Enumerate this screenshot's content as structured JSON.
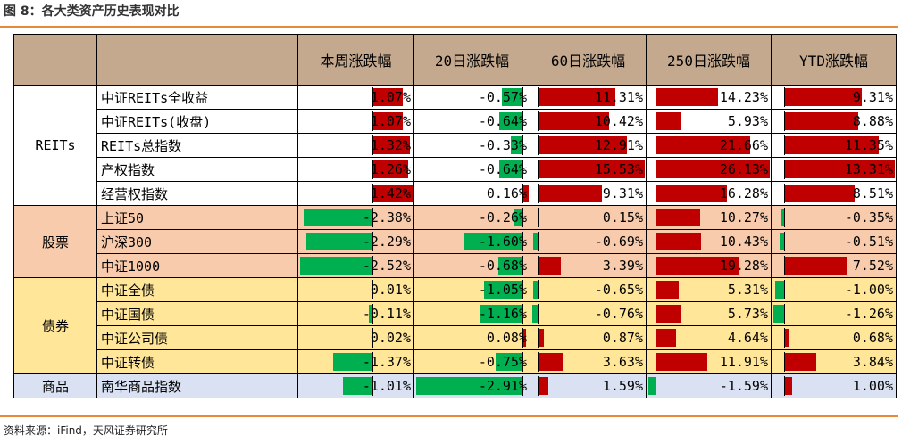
{
  "title": "图 8：各大类资产历史表现对比",
  "source": "资料来源：iFind，天风证券研究所",
  "colors": {
    "positive": "#c00000",
    "negative": "#00b050",
    "header": "#c5a98e"
  },
  "chart_data": {
    "type": "table",
    "columns": [
      "本周涨跌幅",
      "20日涨跌幅",
      "60日涨跌幅",
      "250日涨跌幅",
      "YTD涨跌幅"
    ],
    "groups": [
      {
        "category": "REITs",
        "bg": "#ffffff",
        "rows": [
          {
            "name": "中证REITs全收益",
            "values": [
              1.07,
              -0.57,
              11.31,
              14.23,
              9.31
            ],
            "labels": [
              "1.07%",
              "-0.57%",
              "11.31%",
              "14.23%",
              "9.31%"
            ]
          },
          {
            "name": "中证REITs(收盘)",
            "values": [
              1.07,
              -0.64,
              10.42,
              5.93,
              8.88
            ],
            "labels": [
              "1.07%",
              "-0.64%",
              "10.42%",
              "5.93%",
              "8.88%"
            ]
          },
          {
            "name": "REITs总指数",
            "values": [
              1.32,
              -0.33,
              12.91,
              21.66,
              11.35
            ],
            "labels": [
              "1.32%",
              "-0.33%",
              "12.91%",
              "21.66%",
              "11.35%"
            ]
          },
          {
            "name": "产权指数",
            "values": [
              1.26,
              -0.64,
              15.53,
              26.13,
              13.31
            ],
            "labels": [
              "1.26%",
              "-0.64%",
              "15.53%",
              "26.13%",
              "13.31%"
            ]
          },
          {
            "name": "经营权指数",
            "values": [
              1.42,
              0.16,
              9.31,
              16.28,
              8.51
            ],
            "labels": [
              "1.42%",
              "0.16%",
              "9.31%",
              "16.28%",
              "8.51%"
            ]
          }
        ]
      },
      {
        "category": "股票",
        "bg": "#f8cbad",
        "rows": [
          {
            "name": "上证50",
            "values": [
              -2.38,
              -0.26,
              0.15,
              10.27,
              -0.35
            ],
            "labels": [
              "-2.38%",
              "-0.26%",
              "0.15%",
              "10.27%",
              "-0.35%"
            ]
          },
          {
            "name": "沪深300",
            "values": [
              -2.29,
              -1.6,
              -0.69,
              10.43,
              -0.51
            ],
            "labels": [
              "-2.29%",
              "-1.60%",
              "-0.69%",
              "10.43%",
              "-0.51%"
            ]
          },
          {
            "name": "中证1000",
            "values": [
              -2.52,
              -0.68,
              3.39,
              19.28,
              7.52
            ],
            "labels": [
              "-2.52%",
              "-0.68%",
              "3.39%",
              "19.28%",
              "7.52%"
            ]
          }
        ]
      },
      {
        "category": "债券",
        "bg": "#ffe699",
        "rows": [
          {
            "name": "中证全债",
            "values": [
              0.01,
              -1.05,
              -0.65,
              5.31,
              -1.0
            ],
            "labels": [
              "0.01%",
              "-1.05%",
              "-0.65%",
              "5.31%",
              "-1.00%"
            ]
          },
          {
            "name": "中证国债",
            "values": [
              -0.11,
              -1.16,
              -0.76,
              5.73,
              -1.26
            ],
            "labels": [
              "-0.11%",
              "-1.16%",
              "-0.76%",
              "5.73%",
              "-1.26%"
            ]
          },
          {
            "name": "中证公司债",
            "values": [
              0.02,
              0.08,
              0.87,
              4.64,
              0.68
            ],
            "labels": [
              "0.02%",
              "0.08%",
              "0.87%",
              "4.64%",
              "0.68%"
            ]
          },
          {
            "name": "中证转债",
            "values": [
              -1.37,
              -0.75,
              3.63,
              11.91,
              3.84
            ],
            "labels": [
              "-1.37%",
              "-0.75%",
              "3.63%",
              "11.91%",
              "3.84%"
            ]
          }
        ]
      },
      {
        "category": "商品",
        "bg": "#d9e1f2",
        "rows": [
          {
            "name": "南华商品指数",
            "values": [
              -1.01,
              -2.91,
              1.59,
              -1.59,
              1.0
            ],
            "labels": [
              "-1.01%",
              "-2.91%",
              "1.59%",
              "-1.59%",
              "1.00%"
            ]
          }
        ]
      }
    ]
  }
}
